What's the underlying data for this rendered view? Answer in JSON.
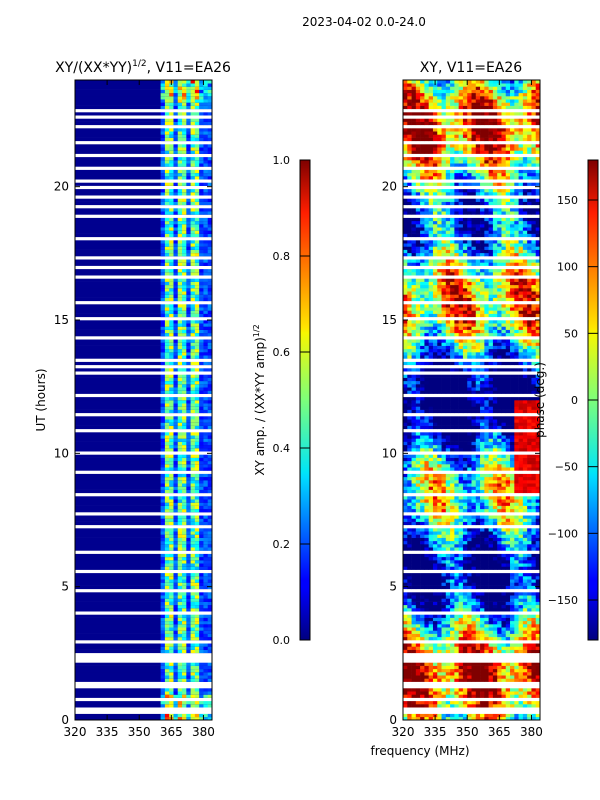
{
  "suptitle": "2023-04-02 0.0-24.0",
  "chart_data": [
    {
      "type": "heatmap",
      "title": "XY/(XX*YY)",
      "title_exponent": "1/2",
      "title_suffix": ", V11=EA26",
      "xlabel": "",
      "ylabel": "UT (hours)",
      "xlim": [
        320,
        384
      ],
      "ylim": [
        0,
        24
      ],
      "xticks": [
        320,
        335,
        350,
        365,
        380
      ],
      "yticks": [
        0,
        5,
        10,
        15,
        20
      ],
      "colorbar": {
        "label": "XY amp. / (XX*YY amp)",
        "label_exponent": "1/2",
        "range": [
          0.0,
          1.0
        ],
        "ticks": [
          "0.0",
          "0.2",
          "0.4",
          "0.6",
          "0.8",
          "1.0"
        ],
        "colormap": "jet"
      }
    },
    {
      "type": "heatmap",
      "title": "XY, V11=EA26",
      "xlabel": "frequency (MHz)",
      "ylabel": "",
      "xlim": [
        320,
        384
      ],
      "ylim": [
        0,
        24
      ],
      "xticks": [
        320,
        335,
        350,
        365,
        380
      ],
      "yticks": [
        0,
        5,
        10,
        15,
        20
      ],
      "colorbar": {
        "label": "phase (deg.)",
        "range": [
          -180,
          180
        ],
        "ticks": [
          "150",
          "100",
          "50",
          "0",
          "−50",
          "−100",
          "−150"
        ],
        "colormap": "jet"
      }
    }
  ]
}
